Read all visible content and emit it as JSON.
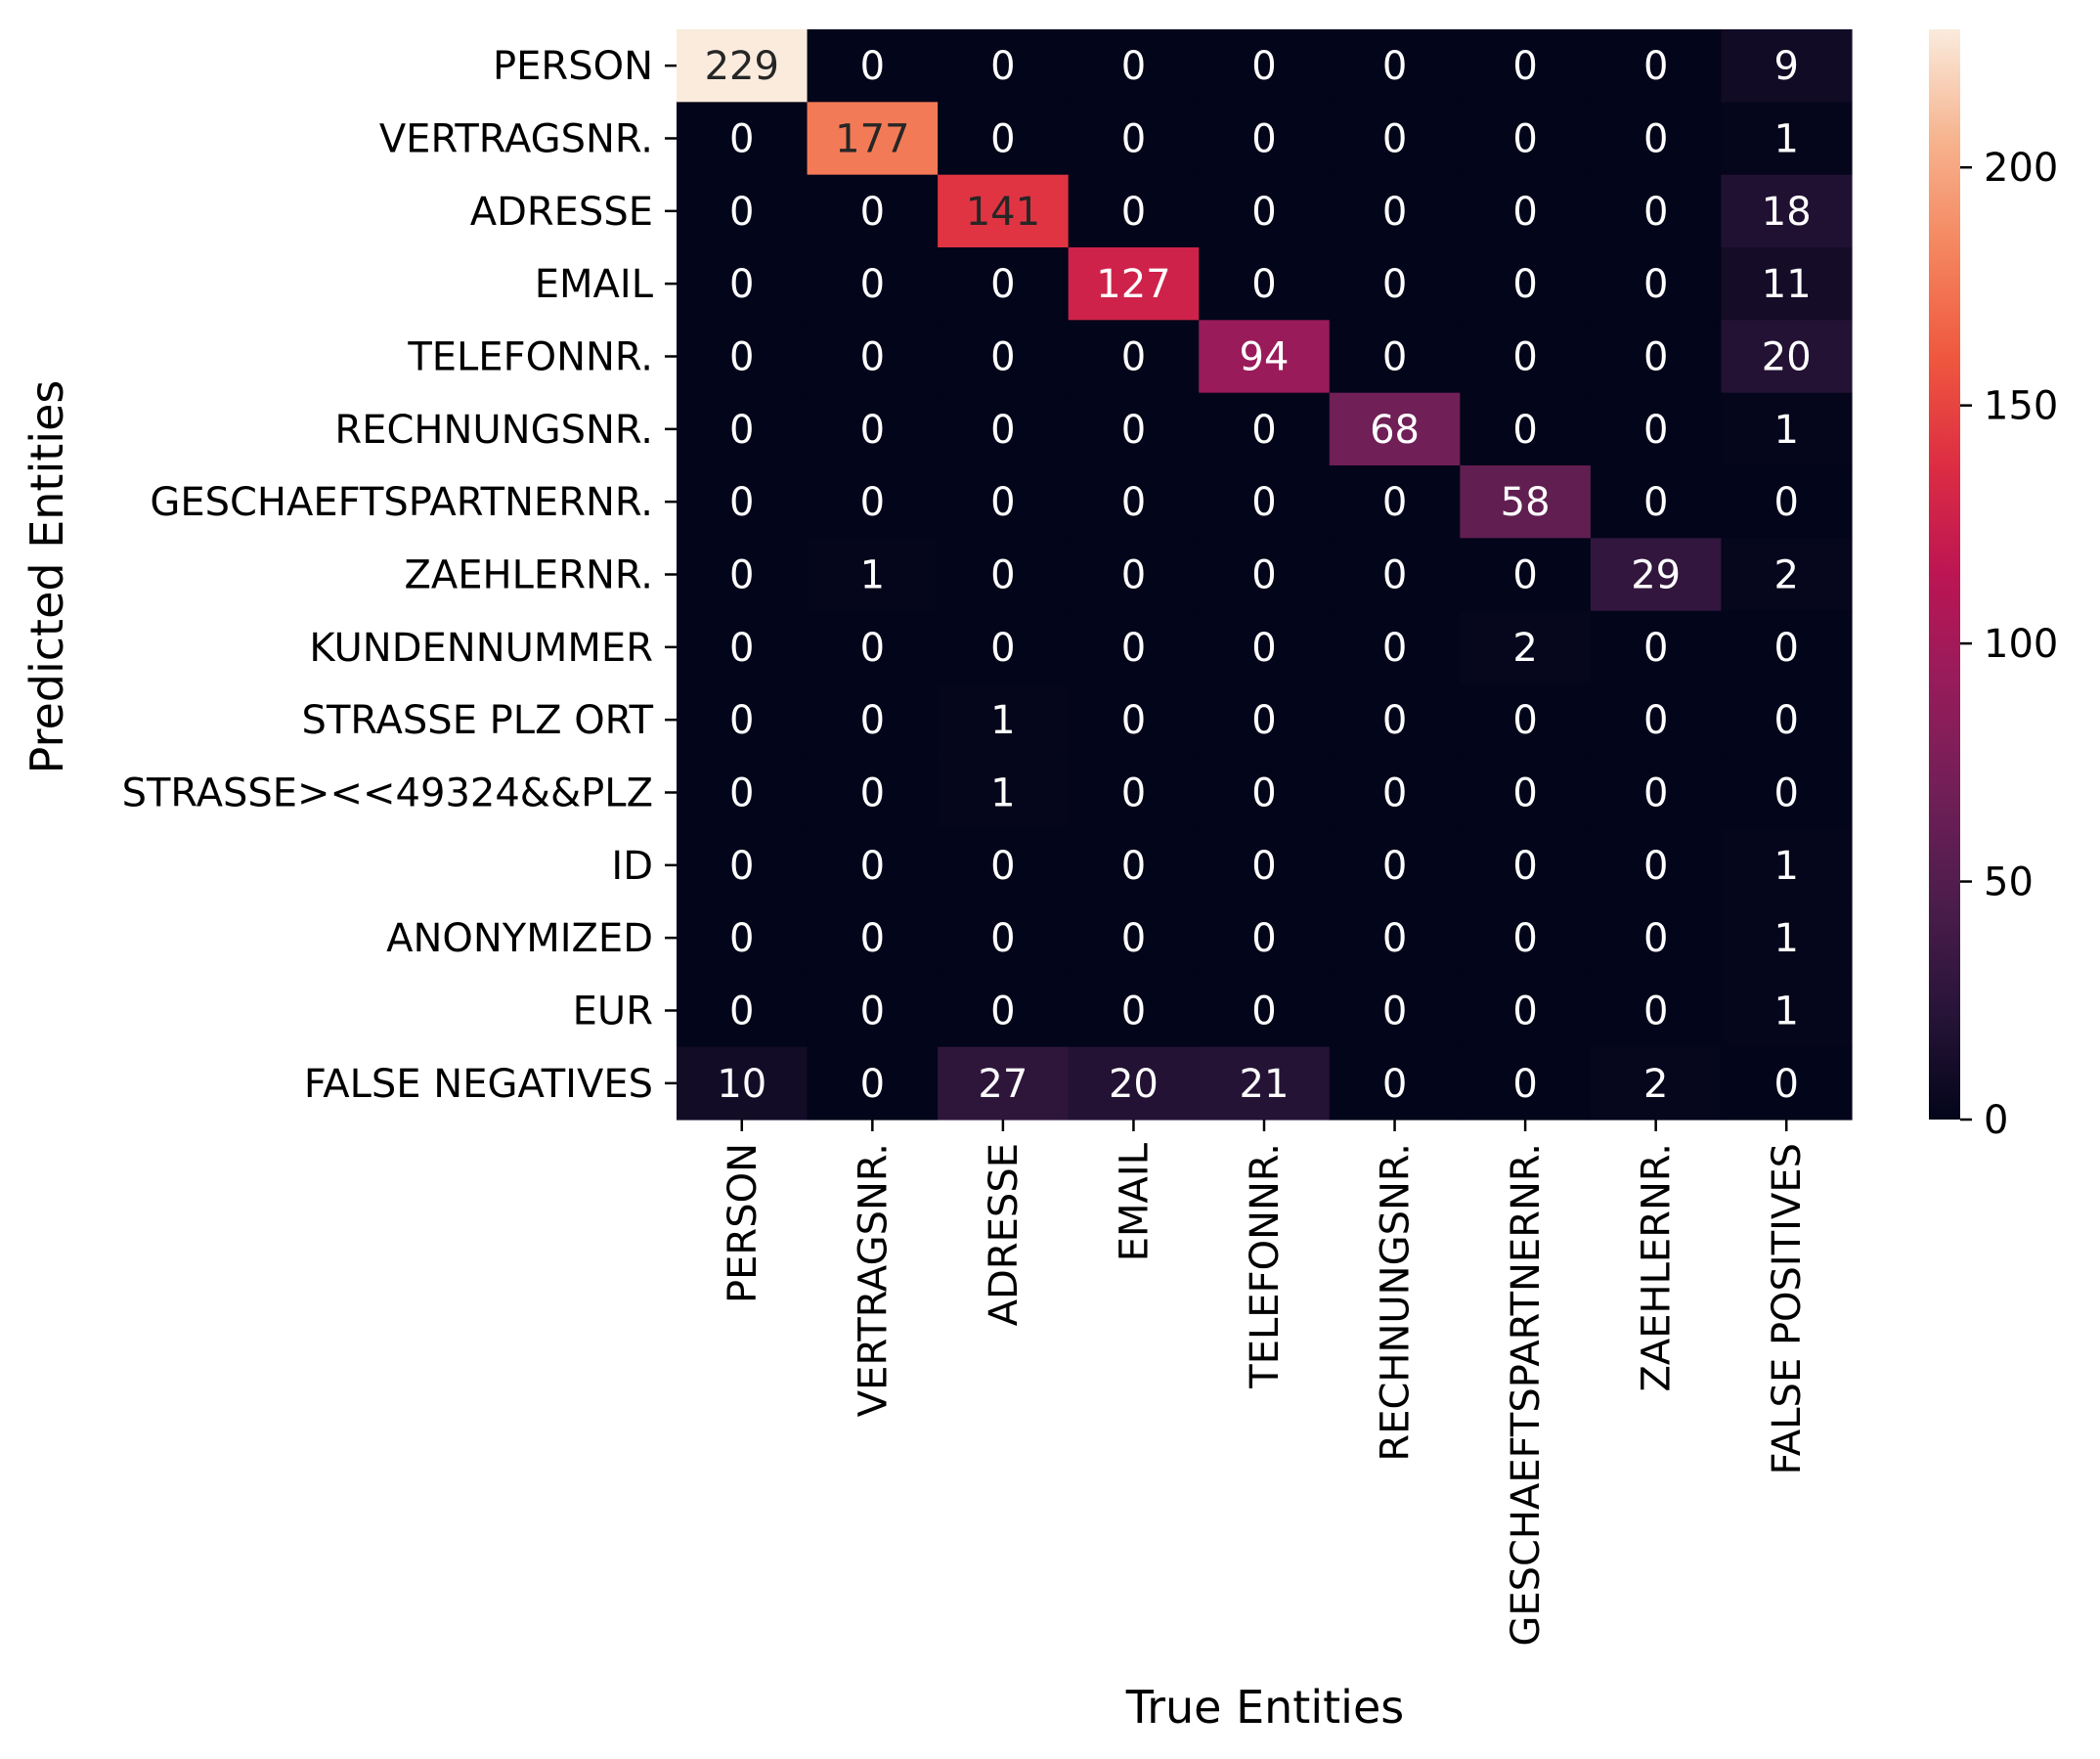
{
  "chart_data": {
    "type": "heatmap",
    "xlabel": "True Entities",
    "ylabel": "Predicted Entities",
    "x_categories": [
      "PERSON",
      "VERTRAGSNR.",
      "ADRESSE",
      "EMAIL",
      "TELEFONNR.",
      "RECHNUNGSNR.",
      "GESCHAEFTSPARTNERNR.",
      "ZAEHLERNR.",
      "FALSE POSITIVES"
    ],
    "y_categories": [
      "PERSON",
      "VERTRAGSNR.",
      "ADRESSE",
      "EMAIL",
      "TELEFONNR.",
      "RECHNUNGSNR.",
      "GESCHAEFTSPARTNERNR.",
      "ZAEHLERNR.",
      "KUNDENNUMMER",
      "STRASSE PLZ ORT",
      "STRASSE><<49324&&PLZ",
      "ID",
      "ANONYMIZED",
      "EUR",
      "FALSE NEGATIVES"
    ],
    "values": [
      [
        229,
        0,
        0,
        0,
        0,
        0,
        0,
        0,
        9
      ],
      [
        0,
        177,
        0,
        0,
        0,
        0,
        0,
        0,
        1
      ],
      [
        0,
        0,
        141,
        0,
        0,
        0,
        0,
        0,
        18
      ],
      [
        0,
        0,
        0,
        127,
        0,
        0,
        0,
        0,
        11
      ],
      [
        0,
        0,
        0,
        0,
        94,
        0,
        0,
        0,
        20
      ],
      [
        0,
        0,
        0,
        0,
        0,
        68,
        0,
        0,
        1
      ],
      [
        0,
        0,
        0,
        0,
        0,
        0,
        58,
        0,
        0
      ],
      [
        0,
        1,
        0,
        0,
        0,
        0,
        0,
        29,
        2
      ],
      [
        0,
        0,
        0,
        0,
        0,
        0,
        2,
        0,
        0
      ],
      [
        0,
        0,
        1,
        0,
        0,
        0,
        0,
        0,
        0
      ],
      [
        0,
        0,
        1,
        0,
        0,
        0,
        0,
        0,
        0
      ],
      [
        0,
        0,
        0,
        0,
        0,
        0,
        0,
        0,
        1
      ],
      [
        0,
        0,
        0,
        0,
        0,
        0,
        0,
        0,
        1
      ],
      [
        0,
        0,
        0,
        0,
        0,
        0,
        0,
        0,
        1
      ],
      [
        10,
        0,
        27,
        20,
        21,
        0,
        0,
        2,
        0
      ]
    ],
    "colorbar": {
      "range": [
        0,
        229
      ],
      "ticks": [
        0,
        50,
        100,
        150,
        200
      ],
      "colormap": "rocket"
    }
  }
}
